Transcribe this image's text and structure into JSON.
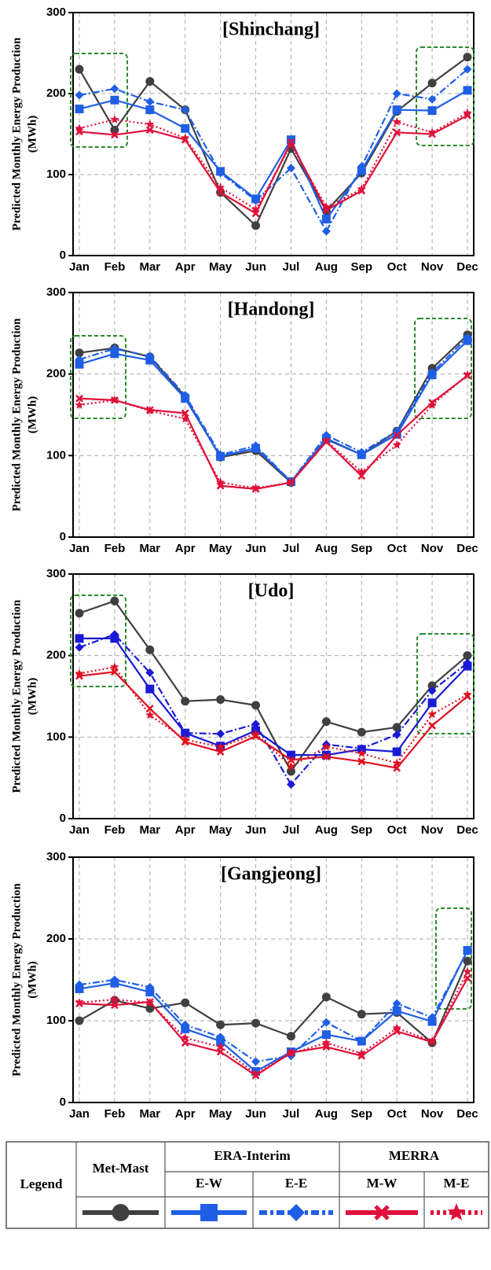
{
  "chart_data": [
    {
      "type": "line",
      "title": "[Shinchang]",
      "y_label": [
        "Predicted Monthly Energy Production",
        "(MWh)"
      ],
      "categories": [
        "Jan",
        "Feb",
        "Mar",
        "Apr",
        "May",
        "Jun",
        "Jul",
        "Aug",
        "Sep",
        "Oct",
        "Nov",
        "Dec"
      ],
      "ylim": [
        0,
        300
      ],
      "yticks": [
        0,
        100,
        200,
        300
      ],
      "grid": true,
      "series": [
        {
          "name": "Met-Mast",
          "color": "#404040",
          "dash": "solid",
          "marker": "circle",
          "values": [
            230,
            155,
            215,
            180,
            78,
            37,
            132,
            55,
            102,
            178,
            213,
            245
          ]
        },
        {
          "name": "E-W",
          "color": "#1f5fe6",
          "dash": "solid",
          "marker": "square",
          "values": [
            181,
            192,
            180,
            157,
            104,
            70,
            143,
            45,
            105,
            180,
            179,
            204
          ]
        },
        {
          "name": "E-E",
          "color": "#1f5fe6",
          "dash": "dashdot",
          "marker": "diamond",
          "values": [
            198,
            206,
            190,
            180,
            102,
            68,
            108,
            30,
            110,
            200,
            193,
            230
          ]
        },
        {
          "name": "M-W",
          "color": "#e0103a",
          "dash": "solid",
          "marker": "x",
          "values": [
            153,
            149,
            155,
            143,
            78,
            52,
            140,
            56,
            80,
            152,
            150,
            173
          ]
        },
        {
          "name": "M-E",
          "color": "#e0103a",
          "dash": "dotted",
          "marker": "star",
          "values": [
            157,
            168,
            162,
            145,
            84,
            57,
            137,
            60,
            82,
            165,
            152,
            176
          ]
        }
      ]
    },
    {
      "type": "line",
      "title": "[Handong]",
      "y_label": [
        "Predicted Monthly Energy Production",
        "(MWh)"
      ],
      "categories": [
        "Jan",
        "Feb",
        "Mar",
        "Apr",
        "May",
        "Jun",
        "Jul",
        "Aug",
        "Sep",
        "Oct",
        "Nov",
        "Dec"
      ],
      "ylim": [
        0,
        300
      ],
      "yticks": [
        0,
        100,
        200,
        300
      ],
      "grid": true,
      "series": [
        {
          "name": "Met-Mast",
          "color": "#404040",
          "dash": "solid",
          "marker": "circle",
          "values": [
            226,
            232,
            221,
            172,
            98,
            106,
            67,
            120,
            101,
            130,
            207,
            248
          ]
        },
        {
          "name": "E-W",
          "color": "#1f5fe6",
          "dash": "solid",
          "marker": "square",
          "values": [
            212,
            225,
            217,
            170,
            99,
            109,
            68,
            121,
            101,
            126,
            199,
            241
          ]
        },
        {
          "name": "E-E",
          "color": "#1f5fe6",
          "dash": "dashdot",
          "marker": "diamond",
          "values": [
            218,
            231,
            222,
            174,
            101,
            112,
            68,
            125,
            104,
            130,
            202,
            245
          ]
        },
        {
          "name": "M-W",
          "color": "#e0103a",
          "dash": "solid",
          "marker": "x",
          "values": [
            170,
            168,
            156,
            152,
            63,
            59,
            67,
            117,
            75,
            125,
            165,
            198
          ]
        },
        {
          "name": "M-E",
          "color": "#e0103a",
          "dash": "dotted",
          "marker": "star",
          "values": [
            162,
            168,
            155,
            145,
            67,
            60,
            67,
            118,
            80,
            113,
            162,
            199
          ]
        }
      ]
    },
    {
      "type": "line",
      "title": "[Udo]",
      "y_label": [
        "Predicted Monthly Energy Production",
        "(MWh)"
      ],
      "categories": [
        "Jan",
        "Feb",
        "Mar",
        "Apr",
        "May",
        "Jun",
        "Jul",
        "Aug",
        "Sep",
        "Oct",
        "Nov",
        "Dec"
      ],
      "ylim": [
        0,
        300
      ],
      "yticks": [
        0,
        100,
        200,
        300
      ],
      "grid": true,
      "series": [
        {
          "name": "Met-Mast",
          "color": "#404040",
          "dash": "solid",
          "marker": "circle",
          "values": [
            252,
            267,
            207,
            144,
            146,
            139,
            58,
            119,
            106,
            112,
            163,
            200
          ]
        },
        {
          "name": "E-W",
          "color": "#1a1ad6",
          "dash": "solid",
          "marker": "square",
          "values": [
            221,
            221,
            159,
            105,
            89,
            108,
            78,
            78,
            85,
            82,
            142,
            187
          ]
        },
        {
          "name": "E-E",
          "color": "#1a1ad6",
          "dash": "dashdot",
          "marker": "diamond",
          "values": [
            210,
            226,
            179,
            105,
            104,
            116,
            42,
            91,
            86,
            103,
            157,
            191
          ]
        },
        {
          "name": "M-W",
          "color": "#e01020",
          "dash": "solid",
          "marker": "x",
          "values": [
            175,
            180,
            135,
            94,
            82,
            101,
            72,
            76,
            70,
            62,
            114,
            150
          ]
        },
        {
          "name": "M-E",
          "color": "#e01020",
          "dash": "dotted",
          "marker": "star",
          "values": [
            178,
            186,
            127,
            97,
            88,
            104,
            64,
            88,
            80,
            68,
            128,
            152
          ]
        }
      ]
    },
    {
      "type": "line",
      "title": "[Gangjeong]",
      "y_label": [
        "Predicted Monthly Energy Production",
        "(MWh)"
      ],
      "categories": [
        "Jan",
        "Feb",
        "Mar",
        "Apr",
        "May",
        "Jun",
        "Jul",
        "Aug",
        "Sep",
        "Oct",
        "Nov",
        "Dec"
      ],
      "ylim": [
        0,
        300
      ],
      "yticks": [
        0,
        100,
        200,
        300
      ],
      "grid": true,
      "series": [
        {
          "name": "Met-Mast",
          "color": "#404040",
          "dash": "solid",
          "marker": "circle",
          "values": [
            100,
            125,
            115,
            122,
            95,
            97,
            81,
            129,
            108,
            110,
            73,
            173
          ]
        },
        {
          "name": "E-W",
          "color": "#1f5fe6",
          "dash": "solid",
          "marker": "square",
          "values": [
            139,
            146,
            135,
            90,
            75,
            38,
            62,
            83,
            75,
            112,
            99,
            186
          ]
        },
        {
          "name": "E-E",
          "color": "#1f5fe6",
          "dash": "dashdot",
          "marker": "diamond",
          "values": [
            144,
            150,
            141,
            95,
            80,
            50,
            57,
            98,
            75,
            121,
            104,
            185
          ]
        },
        {
          "name": "M-W",
          "color": "#e0103a",
          "dash": "solid",
          "marker": "x",
          "values": [
            121,
            119,
            123,
            73,
            62,
            33,
            61,
            68,
            57,
            87,
            74,
            152
          ]
        },
        {
          "name": "M-E",
          "color": "#e0103a",
          "dash": "dotted",
          "marker": "star",
          "values": [
            122,
            126,
            122,
            79,
            68,
            35,
            60,
            73,
            60,
            91,
            75,
            160
          ]
        }
      ]
    }
  ],
  "legend": {
    "title": "Legend",
    "groups": [
      "ERA-Interim",
      "MERRA"
    ]
  }
}
